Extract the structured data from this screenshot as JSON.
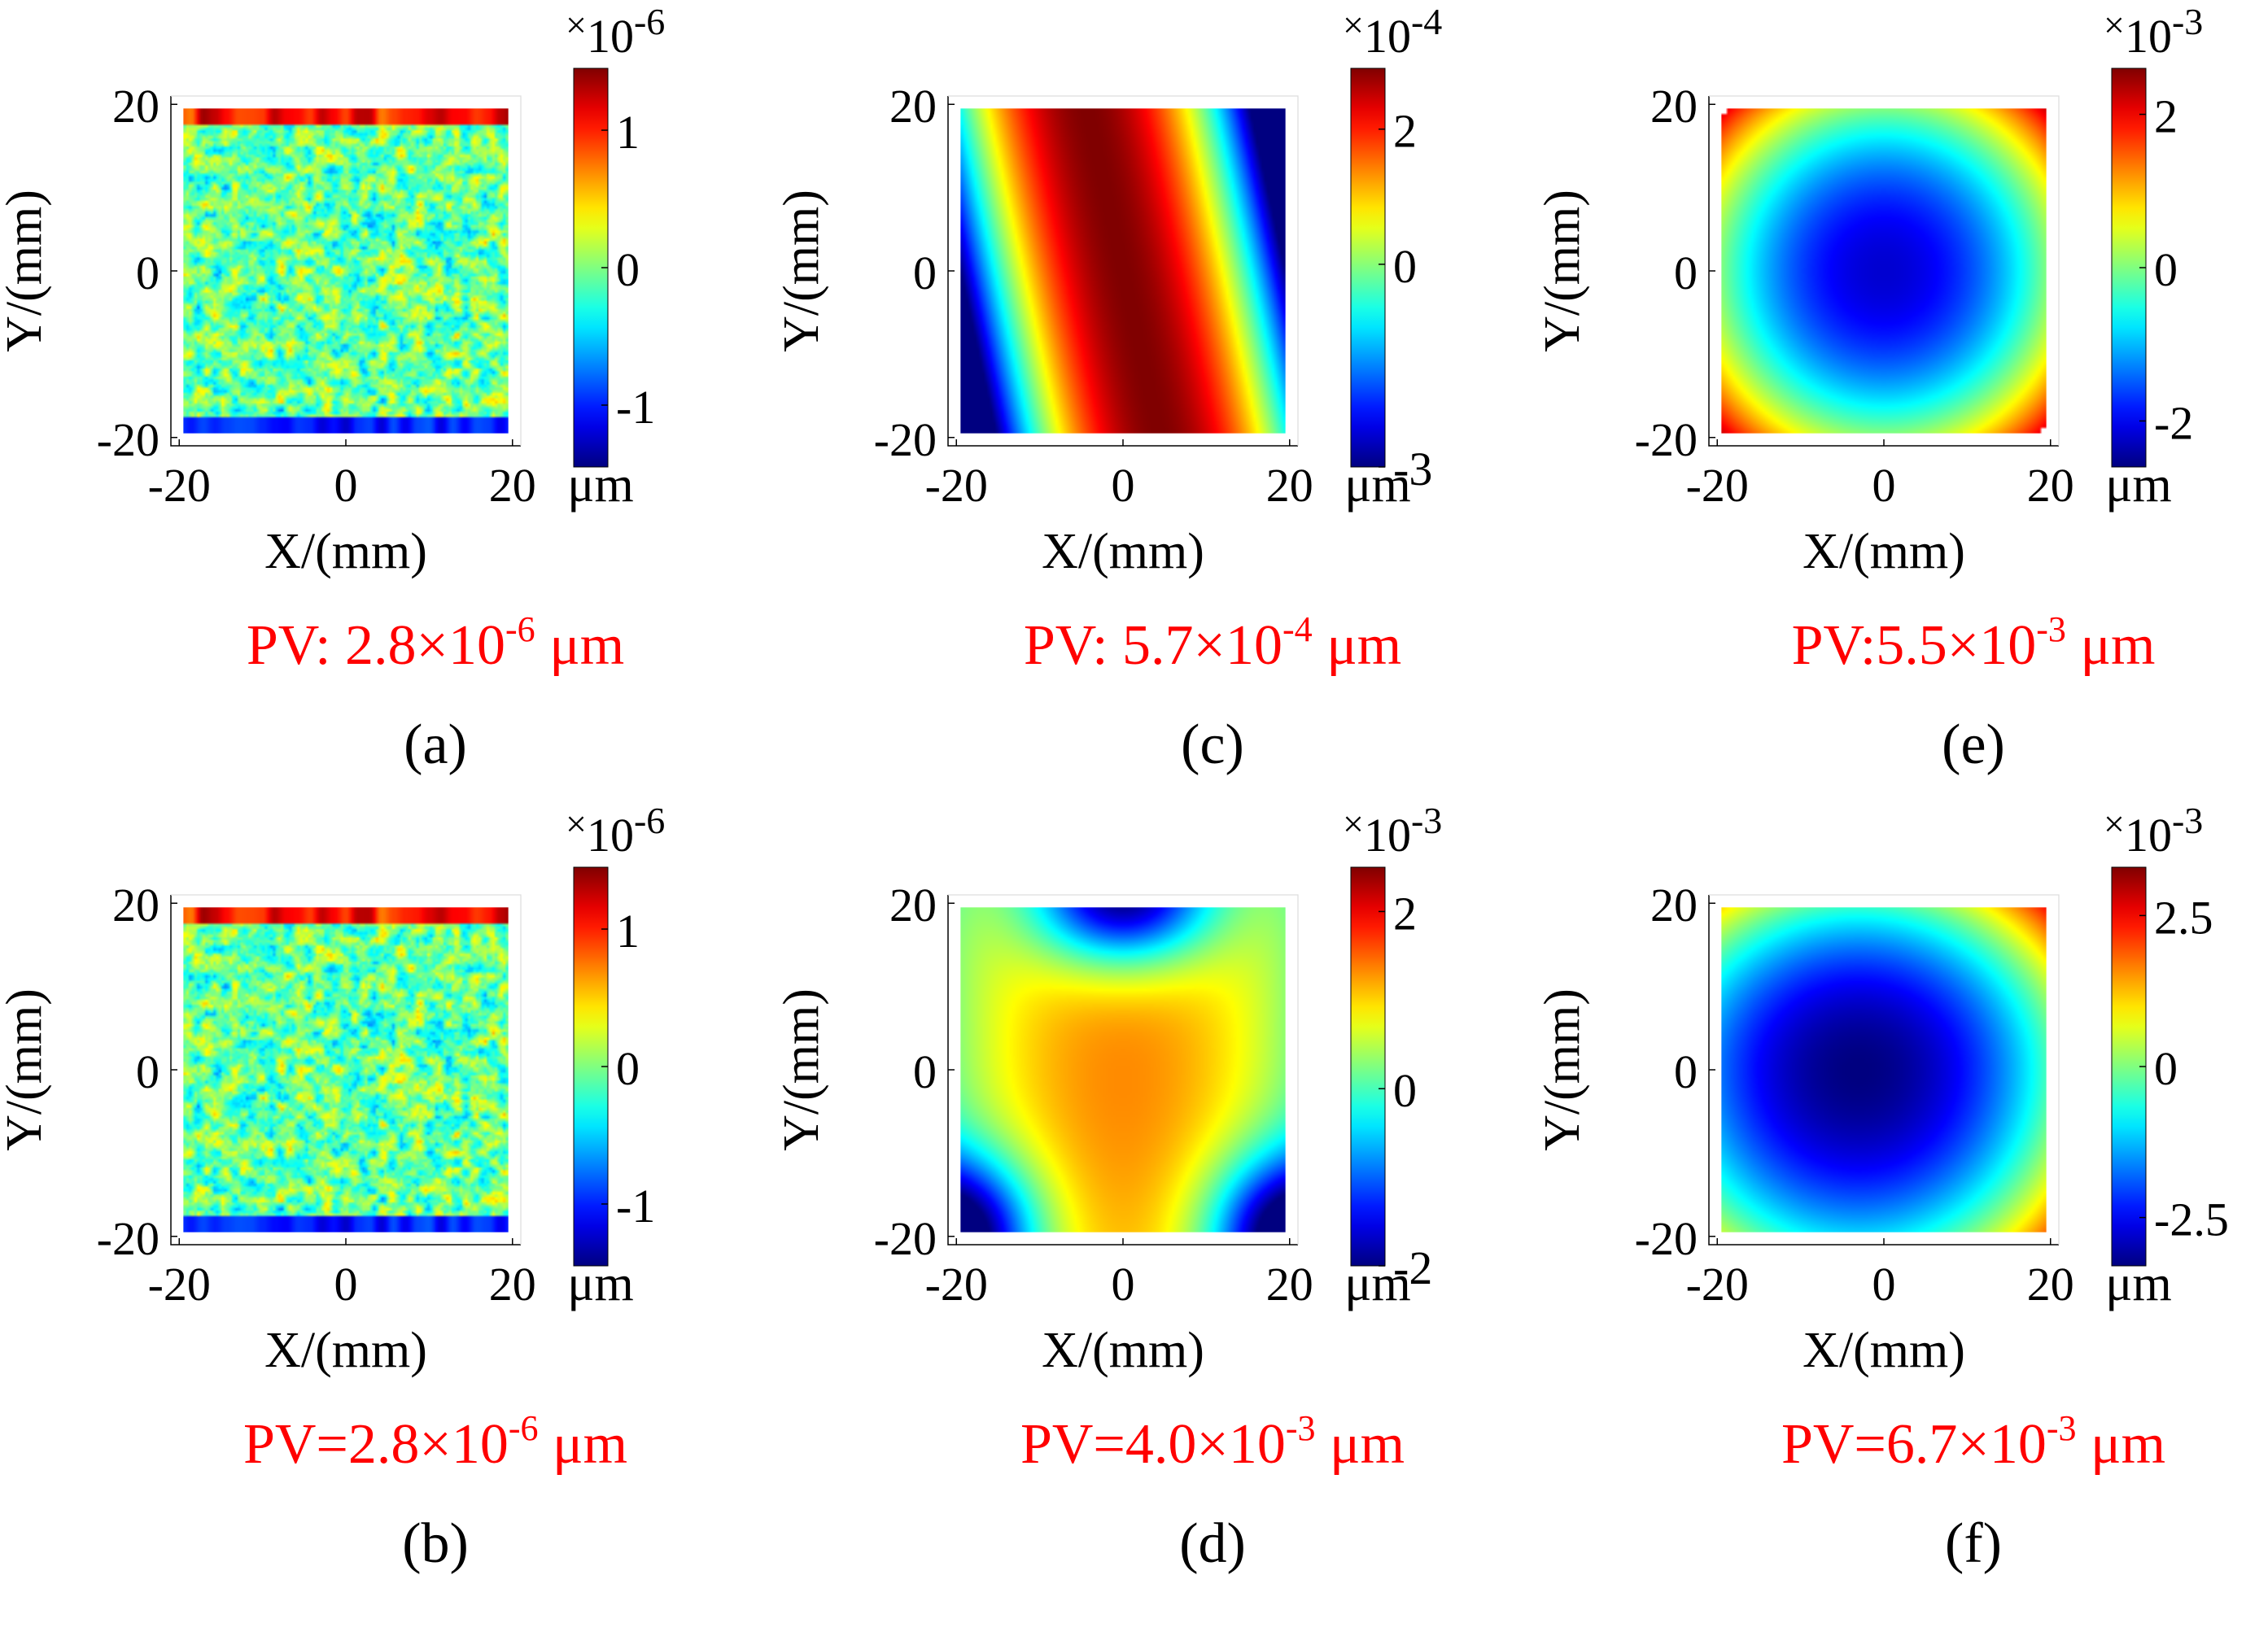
{
  "figure": {
    "panels": [
      {
        "label": "(a)",
        "pv": "PV: 2.8×10",
        "pv_exp": "-6",
        "pv_unit": "μm",
        "colorbar": {
          "multiplier_sign": "×",
          "multiplier_base": "10",
          "multiplier_exp": "-6",
          "min": -1.45,
          "max": 1.45,
          "ticks": [
            1,
            0,
            -1
          ],
          "tick_labels": [
            "1",
            "0",
            "-1"
          ],
          "unit": "μm"
        }
      },
      {
        "label": "(b)",
        "pv": "PV=2.8×10",
        "pv_exp": "-6",
        "pv_unit": "μm",
        "colorbar": {
          "multiplier_sign": "×",
          "multiplier_base": "10",
          "multiplier_exp": "-6",
          "min": -1.45,
          "max": 1.45,
          "ticks": [
            1,
            0,
            -1
          ],
          "tick_labels": [
            "1",
            "0",
            "-1"
          ],
          "unit": "μm"
        }
      },
      {
        "label": "(c)",
        "pv": "PV: 5.7×10",
        "pv_exp": "-4",
        "pv_unit": "μm",
        "colorbar": {
          "multiplier_sign": "×",
          "multiplier_base": "10",
          "multiplier_exp": "-4",
          "min": -3,
          "max": 2.9,
          "ticks": [
            2,
            0,
            -3
          ],
          "tick_labels": [
            "2",
            "0",
            "-3"
          ],
          "unit": "μm"
        }
      },
      {
        "label": "(d)",
        "pv": "PV=4.0×10",
        "pv_exp": "-3",
        "pv_unit": "μm",
        "colorbar": {
          "multiplier_sign": "×",
          "multiplier_base": "10",
          "multiplier_exp": "-3",
          "min": -2,
          "max": 2.5,
          "ticks": [
            2,
            0,
            -2
          ],
          "tick_labels": [
            "2",
            "0",
            "-2"
          ],
          "unit": "μm"
        }
      },
      {
        "label": "(e)",
        "pv": "PV:5.5×10",
        "pv_exp": "-3",
        "pv_unit": "μm",
        "colorbar": {
          "multiplier_sign": "×",
          "multiplier_base": "10",
          "multiplier_exp": "-3",
          "min": -2.6,
          "max": 2.6,
          "ticks": [
            2,
            0,
            -2
          ],
          "tick_labels": [
            "2",
            "0",
            "-2"
          ],
          "unit": "μm"
        }
      },
      {
        "label": "(f)",
        "pv": "PV=6.7×10",
        "pv_exp": "-3",
        "pv_unit": "μm",
        "colorbar": {
          "multiplier_sign": "×",
          "multiplier_base": "10",
          "multiplier_exp": "-3",
          "min": -3.3,
          "max": 3.3,
          "ticks": [
            2.5,
            0,
            -2.5
          ],
          "tick_labels": [
            "2.5",
            "0",
            "-2.5"
          ],
          "unit": "μm"
        }
      }
    ]
  },
  "chart_data": [
    {
      "panel": "a",
      "type": "heatmap",
      "surface": "random-roughness",
      "xlabel": "X/(mm)",
      "ylabel": "Y/(mm)",
      "xlim": [
        -21,
        21
      ],
      "ylim": [
        -21,
        21
      ],
      "xticks": [
        -20,
        0,
        20
      ],
      "yticks": [
        20,
        0,
        -20
      ],
      "xtick_labels": [
        "-20",
        "0",
        "20"
      ],
      "ytick_labels": [
        "20",
        "0",
        "-20"
      ],
      "value_range": [
        -1.45e-06,
        1.45e-06
      ],
      "unit": "μm",
      "pv": 2.8e-06
    },
    {
      "panel": "b",
      "type": "heatmap",
      "surface": "random-roughness",
      "xlabel": "X/(mm)",
      "ylabel": "Y/(mm)",
      "xlim": [
        -21,
        21
      ],
      "ylim": [
        -21,
        21
      ],
      "xticks": [
        -20,
        0,
        20
      ],
      "yticks": [
        20,
        0,
        -20
      ],
      "xtick_labels": [
        "-20",
        "0",
        "20"
      ],
      "ytick_labels": [
        "20",
        "0",
        "-20"
      ],
      "value_range": [
        -1.45e-06,
        1.45e-06
      ],
      "unit": "μm",
      "pv": 2.8e-06
    },
    {
      "panel": "c",
      "type": "heatmap",
      "surface": "tilted-ridge",
      "xlabel": "X/(mm)",
      "ylabel": "Y/(mm)",
      "xlim": [
        -21,
        21
      ],
      "ylim": [
        -21,
        21
      ],
      "xticks": [
        -20,
        0,
        20
      ],
      "yticks": [
        20,
        0,
        -20
      ],
      "xtick_labels": [
        "-20",
        "0",
        "20"
      ],
      "ytick_labels": [
        "20",
        "0",
        "-20"
      ],
      "value_range": [
        -0.0003,
        0.00029
      ],
      "unit": "μm",
      "pv": 0.00057
    },
    {
      "panel": "d",
      "type": "heatmap",
      "surface": "saddle-corners",
      "xlabel": "X/(mm)",
      "ylabel": "Y/(mm)",
      "xlim": [
        -21,
        21
      ],
      "ylim": [
        -21,
        21
      ],
      "xticks": [
        -20,
        0,
        20
      ],
      "yticks": [
        20,
        0,
        -20
      ],
      "xtick_labels": [
        "-20",
        "0",
        "20"
      ],
      "ytick_labels": [
        "20",
        "0",
        "-20"
      ],
      "value_range": [
        -0.002,
        0.0025
      ],
      "unit": "μm",
      "pv": 0.004
    },
    {
      "panel": "e",
      "type": "heatmap",
      "surface": "radial-bowl",
      "xlabel": "X/(mm)",
      "ylabel": "Y/(mm)",
      "xlim": [
        -21,
        21
      ],
      "ylim": [
        -21,
        21
      ],
      "xticks": [
        -20,
        0,
        20
      ],
      "yticks": [
        20,
        0,
        -20
      ],
      "xtick_labels": [
        "-20",
        "0",
        "20"
      ],
      "ytick_labels": [
        "20",
        "0",
        "-20"
      ],
      "value_range": [
        -0.0026,
        0.0026
      ],
      "unit": "μm",
      "pv": 0.0055
    },
    {
      "panel": "f",
      "type": "heatmap",
      "surface": "radial-bowl-shifted",
      "xlabel": "X/(mm)",
      "ylabel": "Y/(mm)",
      "xlim": [
        -21,
        21
      ],
      "ylim": [
        -21,
        21
      ],
      "xticks": [
        -20,
        0,
        20
      ],
      "yticks": [
        20,
        0,
        -20
      ],
      "xtick_labels": [
        "-20",
        "0",
        "20"
      ],
      "ytick_labels": [
        "20",
        "0",
        "-20"
      ],
      "value_range": [
        -0.0033,
        0.0033
      ],
      "unit": "μm",
      "pv": 0.0067
    }
  ],
  "colors": {
    "pv_text": "#ff0000",
    "text": "#000000",
    "axis": "#000000"
  }
}
